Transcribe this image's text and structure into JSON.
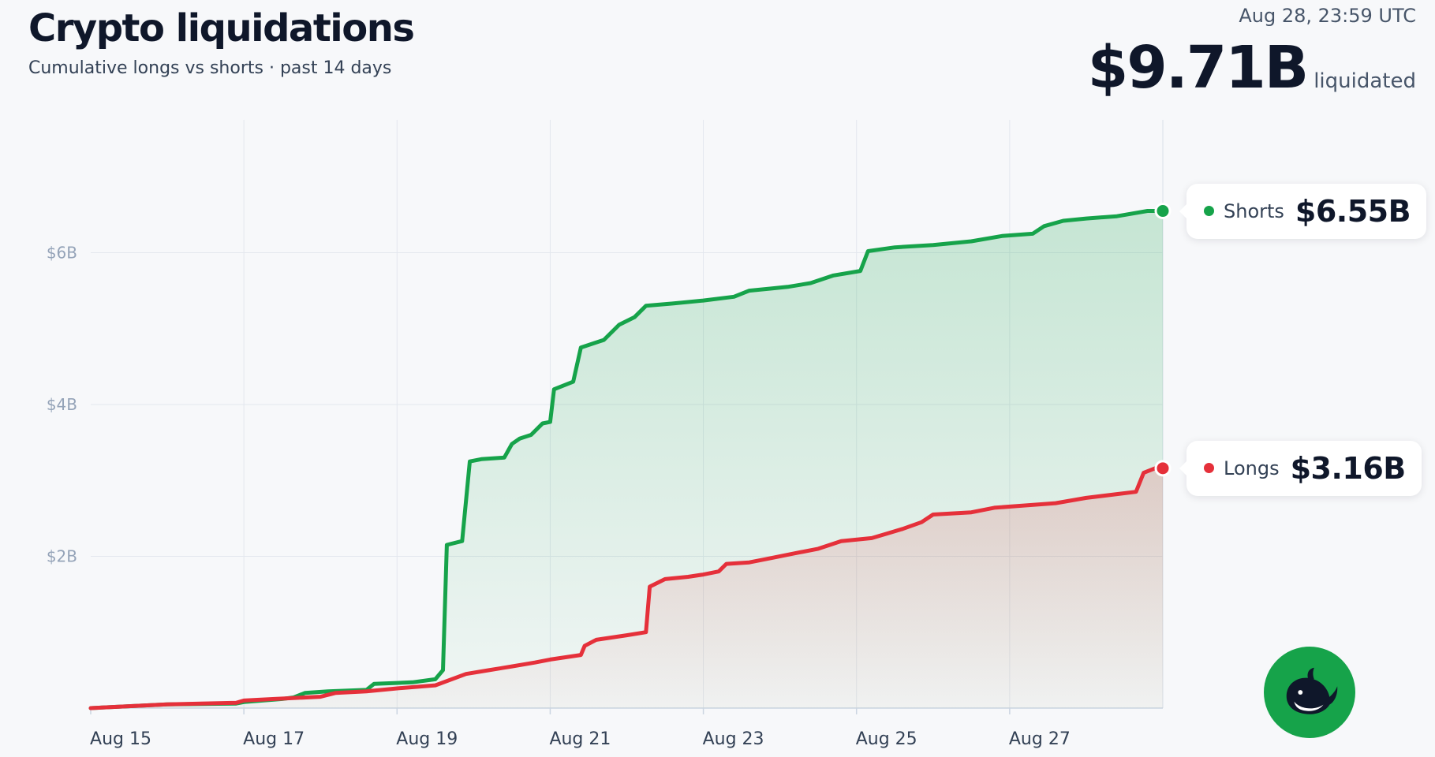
{
  "header": {
    "title": "Crypto liquidations",
    "subtitle": "Cumulative longs vs shorts · past 14 days",
    "timestamp": "Aug 28, 23:59 UTC",
    "total_value": "$9.71B",
    "total_suffix": "liquidated"
  },
  "callouts": {
    "shorts": {
      "name": "Shorts",
      "value": "$6.55B"
    },
    "longs": {
      "name": "Longs",
      "value": "$3.16B"
    }
  },
  "colors": {
    "shorts": "#16a34a",
    "longs": "#e5303a",
    "grid": "#e3e7ee",
    "tick_text": "#94a3b8",
    "date_text": "#334155"
  },
  "logo": {
    "icon": "whale-icon"
  },
  "chart_data": {
    "type": "area",
    "x_unit": "days",
    "x_range": [
      "2024-08-14T00:00",
      "2024-08-29T00:00"
    ],
    "xlim": [
      0,
      14
    ],
    "ylim": [
      0,
      7.75
    ],
    "y_unit": "$B",
    "grid": "on",
    "x_ticks": [
      {
        "x": 0,
        "label": "Aug 15"
      },
      {
        "x": 2,
        "label": "Aug 17"
      },
      {
        "x": 4,
        "label": "Aug 19"
      },
      {
        "x": 6,
        "label": "Aug 21"
      },
      {
        "x": 8,
        "label": "Aug 23"
      },
      {
        "x": 10,
        "label": "Aug 25"
      },
      {
        "x": 12,
        "label": "Aug 27"
      }
    ],
    "y_ticks": [
      {
        "y": 2,
        "label": "$2B"
      },
      {
        "y": 4,
        "label": "$4B"
      },
      {
        "y": 6,
        "label": "$6B"
      }
    ],
    "series": [
      {
        "name": "Shorts",
        "points": [
          [
            0,
            0
          ],
          [
            1.0,
            0.05
          ],
          [
            1.9,
            0.06
          ],
          [
            2.0,
            0.08
          ],
          [
            2.5,
            0.12
          ],
          [
            2.65,
            0.14
          ],
          [
            2.8,
            0.2
          ],
          [
            3.1,
            0.22
          ],
          [
            3.6,
            0.24
          ],
          [
            3.7,
            0.32
          ],
          [
            4.2,
            0.34
          ],
          [
            4.5,
            0.38
          ],
          [
            4.6,
            0.5
          ],
          [
            4.65,
            2.15
          ],
          [
            4.85,
            2.2
          ],
          [
            4.95,
            3.25
          ],
          [
            5.1,
            3.28
          ],
          [
            5.4,
            3.3
          ],
          [
            5.5,
            3.48
          ],
          [
            5.6,
            3.55
          ],
          [
            5.75,
            3.6
          ],
          [
            5.9,
            3.75
          ],
          [
            6.0,
            3.77
          ],
          [
            6.05,
            4.2
          ],
          [
            6.3,
            4.3
          ],
          [
            6.4,
            4.75
          ],
          [
            6.7,
            4.85
          ],
          [
            6.9,
            5.05
          ],
          [
            7.1,
            5.15
          ],
          [
            7.25,
            5.3
          ],
          [
            7.6,
            5.33
          ],
          [
            8.0,
            5.37
          ],
          [
            8.4,
            5.42
          ],
          [
            8.6,
            5.5
          ],
          [
            8.9,
            5.53
          ],
          [
            9.1,
            5.55
          ],
          [
            9.4,
            5.6
          ],
          [
            9.7,
            5.7
          ],
          [
            10.05,
            5.76
          ],
          [
            10.15,
            6.02
          ],
          [
            10.5,
            6.07
          ],
          [
            11.0,
            6.1
          ],
          [
            11.5,
            6.15
          ],
          [
            11.9,
            6.22
          ],
          [
            12.3,
            6.25
          ],
          [
            12.45,
            6.35
          ],
          [
            12.7,
            6.42
          ],
          [
            13.0,
            6.45
          ],
          [
            13.4,
            6.48
          ],
          [
            13.8,
            6.55
          ],
          [
            14.0,
            6.55
          ]
        ]
      },
      {
        "name": "Longs",
        "points": [
          [
            0,
            0
          ],
          [
            1.0,
            0.05
          ],
          [
            1.9,
            0.07
          ],
          [
            2.0,
            0.1
          ],
          [
            2.4,
            0.12
          ],
          [
            3.0,
            0.15
          ],
          [
            3.2,
            0.2
          ],
          [
            3.6,
            0.22
          ],
          [
            4.0,
            0.26
          ],
          [
            4.5,
            0.3
          ],
          [
            4.9,
            0.45
          ],
          [
            5.2,
            0.5
          ],
          [
            5.5,
            0.55
          ],
          [
            5.8,
            0.6
          ],
          [
            6.0,
            0.64
          ],
          [
            6.4,
            0.7
          ],
          [
            6.45,
            0.82
          ],
          [
            6.6,
            0.9
          ],
          [
            7.0,
            0.96
          ],
          [
            7.25,
            1.0
          ],
          [
            7.3,
            1.6
          ],
          [
            7.5,
            1.7
          ],
          [
            7.8,
            1.73
          ],
          [
            8.0,
            1.76
          ],
          [
            8.2,
            1.8
          ],
          [
            8.3,
            1.9
          ],
          [
            8.6,
            1.92
          ],
          [
            8.9,
            1.98
          ],
          [
            9.2,
            2.04
          ],
          [
            9.5,
            2.1
          ],
          [
            9.8,
            2.2
          ],
          [
            10.2,
            2.24
          ],
          [
            10.4,
            2.3
          ],
          [
            10.6,
            2.36
          ],
          [
            10.85,
            2.45
          ],
          [
            11.0,
            2.55
          ],
          [
            11.5,
            2.58
          ],
          [
            11.8,
            2.64
          ],
          [
            12.2,
            2.67
          ],
          [
            12.6,
            2.7
          ],
          [
            13.0,
            2.77
          ],
          [
            13.4,
            2.82
          ],
          [
            13.65,
            2.85
          ],
          [
            13.75,
            3.1
          ],
          [
            13.9,
            3.16
          ],
          [
            14.0,
            3.16
          ]
        ]
      }
    ]
  }
}
